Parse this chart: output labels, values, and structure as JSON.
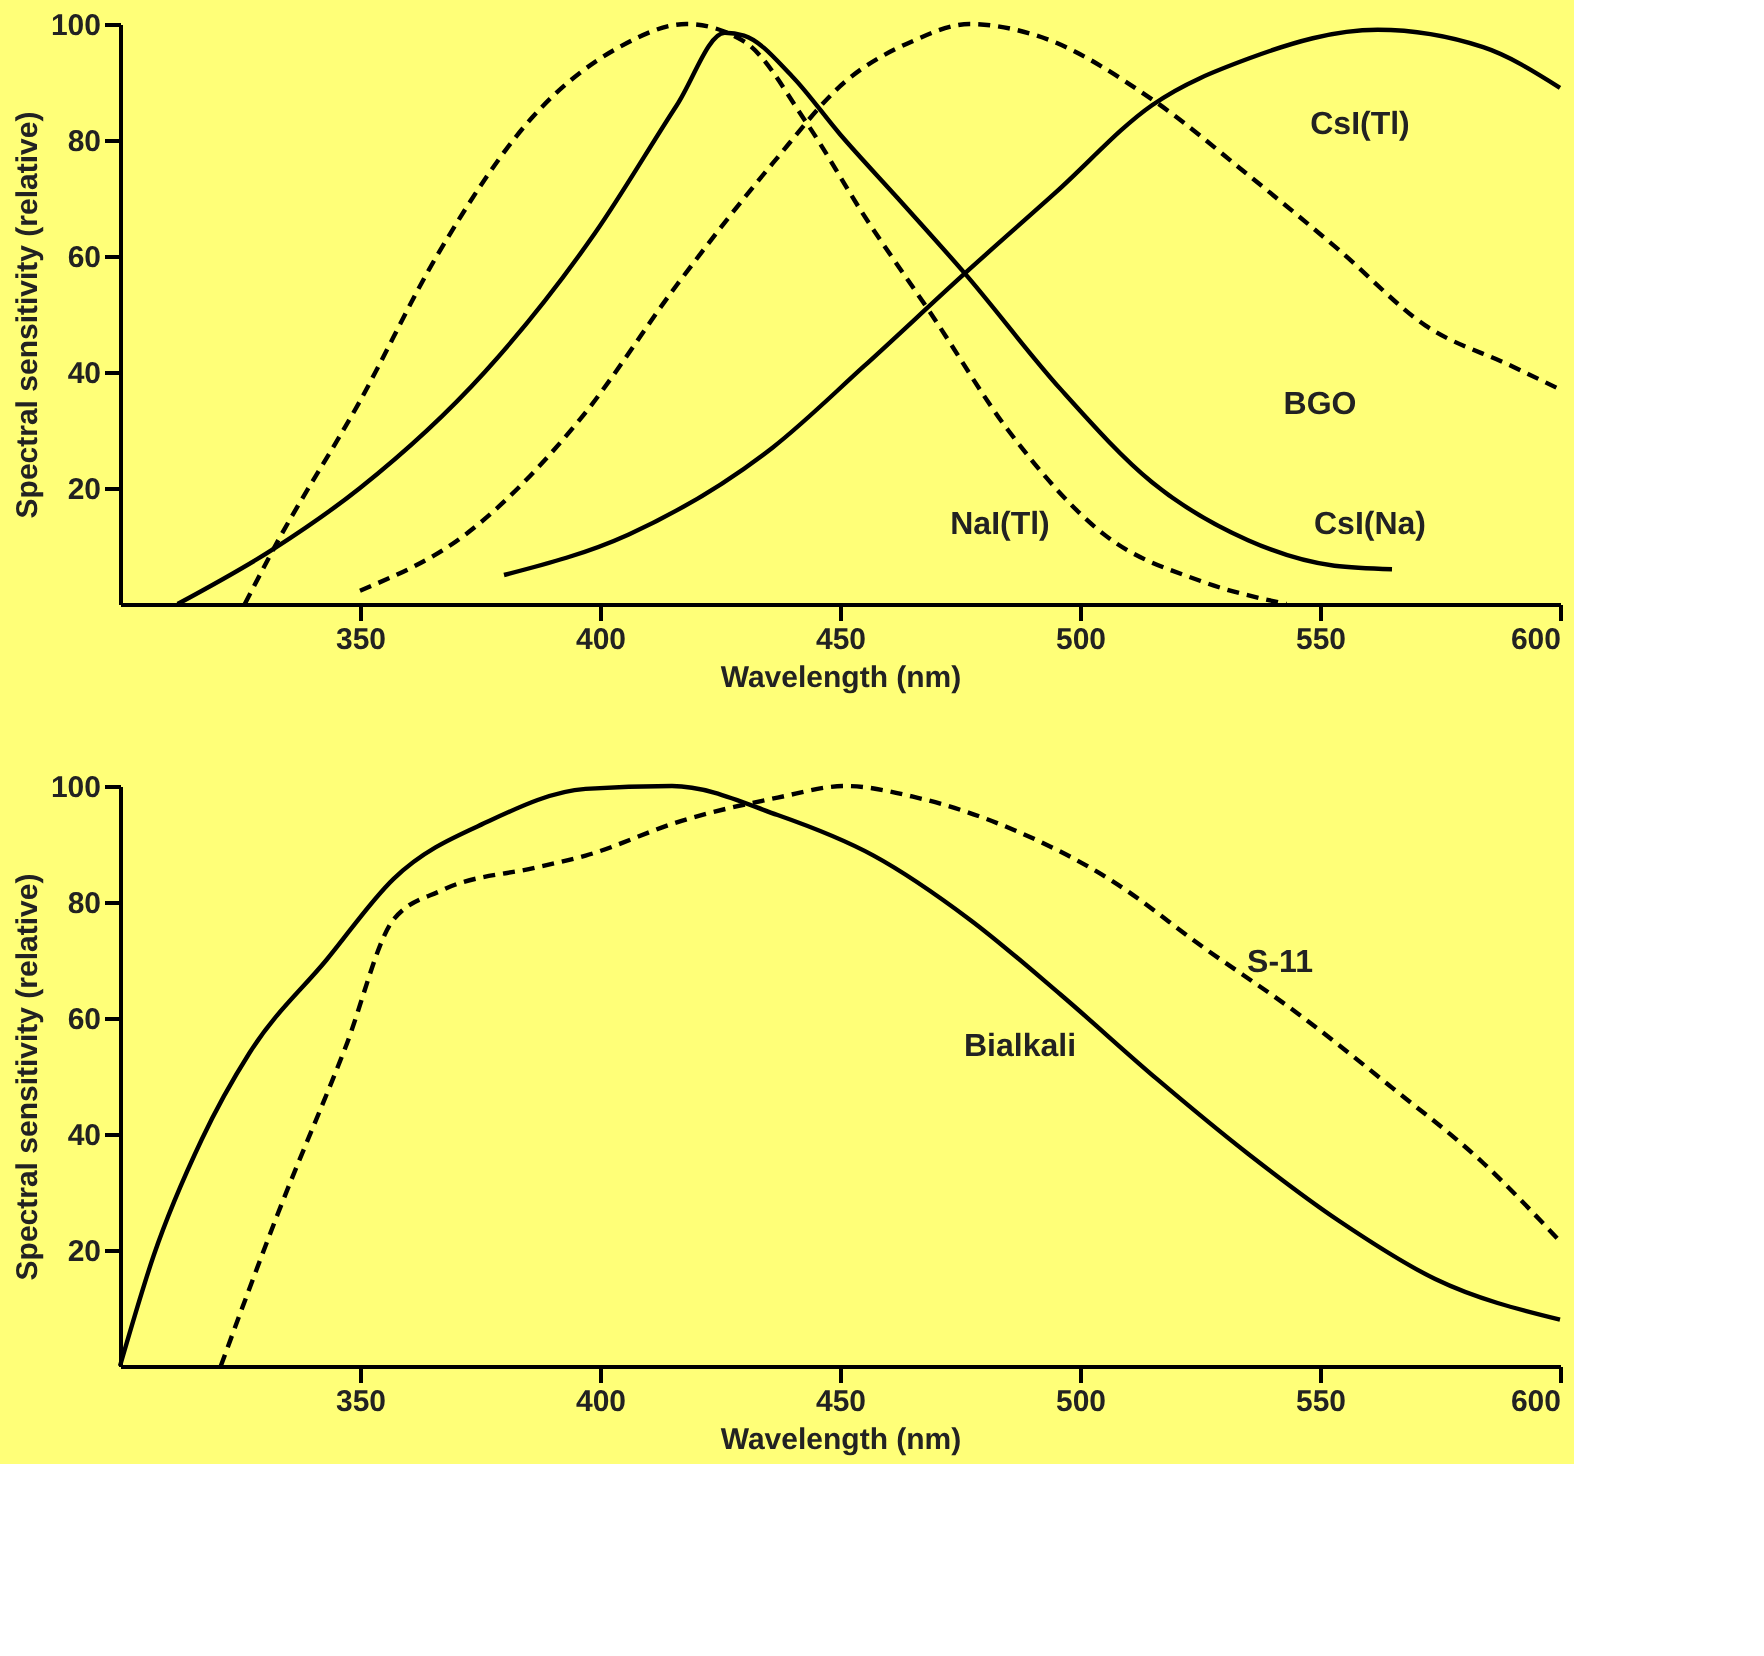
{
  "chart_data": [
    {
      "type": "line",
      "xlabel": "Wavelength (nm)",
      "ylabel": "Spectral sensitivity (relative)",
      "xlim": [
        300,
        600
      ],
      "ylim": [
        0,
        100
      ],
      "xticks": [
        350,
        400,
        450,
        500,
        550,
        600
      ],
      "yticks": [
        20,
        40,
        60,
        80,
        100
      ],
      "grid": false,
      "marker": "none",
      "series": [
        {
          "name": "NaI(Tl)",
          "color": "#000000",
          "line_style": "dashed",
          "x": [
            326,
            332,
            350,
            366,
            386,
            404,
            418,
            430,
            443,
            455,
            469,
            485,
            505,
            525,
            543
          ],
          "values": [
            0,
            9.5,
            35,
            60,
            84,
            96,
            100,
            97,
            83,
            67,
            50,
            30,
            12,
            4,
            0
          ]
        },
        {
          "name": "CsI(Na)",
          "color": "#000000",
          "line_style": "solid",
          "x": [
            312,
            332,
            350,
            376,
            399,
            416,
            426,
            430,
            440,
            450,
            462,
            476,
            496,
            515,
            535,
            553,
            565
          ],
          "values": [
            0,
            9.5,
            20,
            40,
            64,
            86,
            98.5,
            98,
            91,
            81,
            70,
            57,
            37,
            21,
            11,
            6.6,
            6
          ]
        },
        {
          "name": "BGO",
          "color": "#000000",
          "line_style": "dashed",
          "x": [
            350,
            372,
            396,
            416,
            436,
            451,
            465,
            477,
            491,
            515,
            535,
            554,
            572,
            590,
            600
          ],
          "values": [
            2.3,
            12,
            32,
            55,
            76,
            90,
            97,
            100,
            98,
            87,
            74,
            61,
            48,
            41,
            37
          ]
        },
        {
          "name": "CsI(Tl)",
          "color": "#000000",
          "line_style": "solid",
          "x": [
            380,
            406,
            436,
            455,
            476,
            495,
            515,
            535,
            562,
            584,
            600
          ],
          "values": [
            5,
            12,
            27,
            41,
            57,
            71,
            86,
            94,
            99,
            96,
            89
          ]
        }
      ]
    },
    {
      "type": "line",
      "xlabel": "Wavelength (nm)",
      "ylabel": "Spectral sensitivity (relative)",
      "xlim": [
        300,
        600
      ],
      "ylim": [
        0,
        100
      ],
      "xticks": [
        350,
        400,
        450,
        500,
        550,
        600
      ],
      "yticks": [
        20,
        40,
        60,
        80,
        100
      ],
      "grid": false,
      "marker": "none",
      "series": [
        {
          "name": "Bialkali",
          "color": "#000000",
          "line_style": "solid",
          "x": [
            300,
            307,
            317,
            327,
            343,
            357,
            377,
            397,
            415,
            437,
            457,
            477,
            496,
            516,
            535,
            554,
            574,
            600
          ],
          "values": [
            0,
            19,
            39,
            54,
            70,
            84,
            94,
            99.5,
            100,
            95,
            88,
            77,
            64,
            49.5,
            36.6,
            25,
            15,
            8
          ]
        },
        {
          "name": "S-11",
          "color": "#000000",
          "line_style": "dashed",
          "x": [
            321,
            333,
            347,
            357,
            367,
            387,
            397,
            417,
            437,
            451,
            466,
            486,
            506,
            526,
            545,
            565,
            584,
            600
          ],
          "values": [
            0,
            26.5,
            55,
            77,
            82,
            86,
            88,
            94,
            98,
            100,
            98,
            92.5,
            84,
            72,
            61,
            48,
            35,
            21.5
          ]
        }
      ]
    }
  ]
}
